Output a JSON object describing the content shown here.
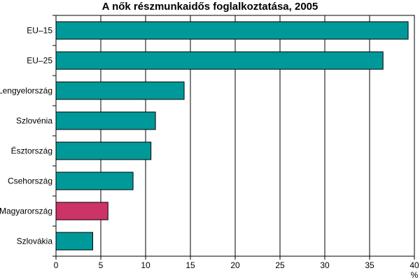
{
  "chart_data": {
    "type": "bar",
    "orientation": "horizontal",
    "title": "A nők részmunkaidős foglalkoztatása, 2005",
    "xlabel": "%",
    "ylabel": "",
    "categories": [
      "EU–15",
      "EU–25",
      "Lengyelország",
      "Szlovénia",
      "Észtország",
      "Csehország",
      "Magyarország",
      "Szlovákia"
    ],
    "values": [
      39.3,
      36.5,
      14.3,
      11.1,
      10.6,
      8.6,
      5.8,
      4.1
    ],
    "bar_colors": [
      "#009999",
      "#009999",
      "#009999",
      "#009999",
      "#009999",
      "#009999",
      "#cc3366",
      "#009999"
    ],
    "xlim": [
      0,
      40
    ],
    "xticks": [
      "0",
      "5",
      "10",
      "15",
      "20",
      "25",
      "30",
      "35",
      "40"
    ],
    "grid": "vertical",
    "legend": "none"
  }
}
